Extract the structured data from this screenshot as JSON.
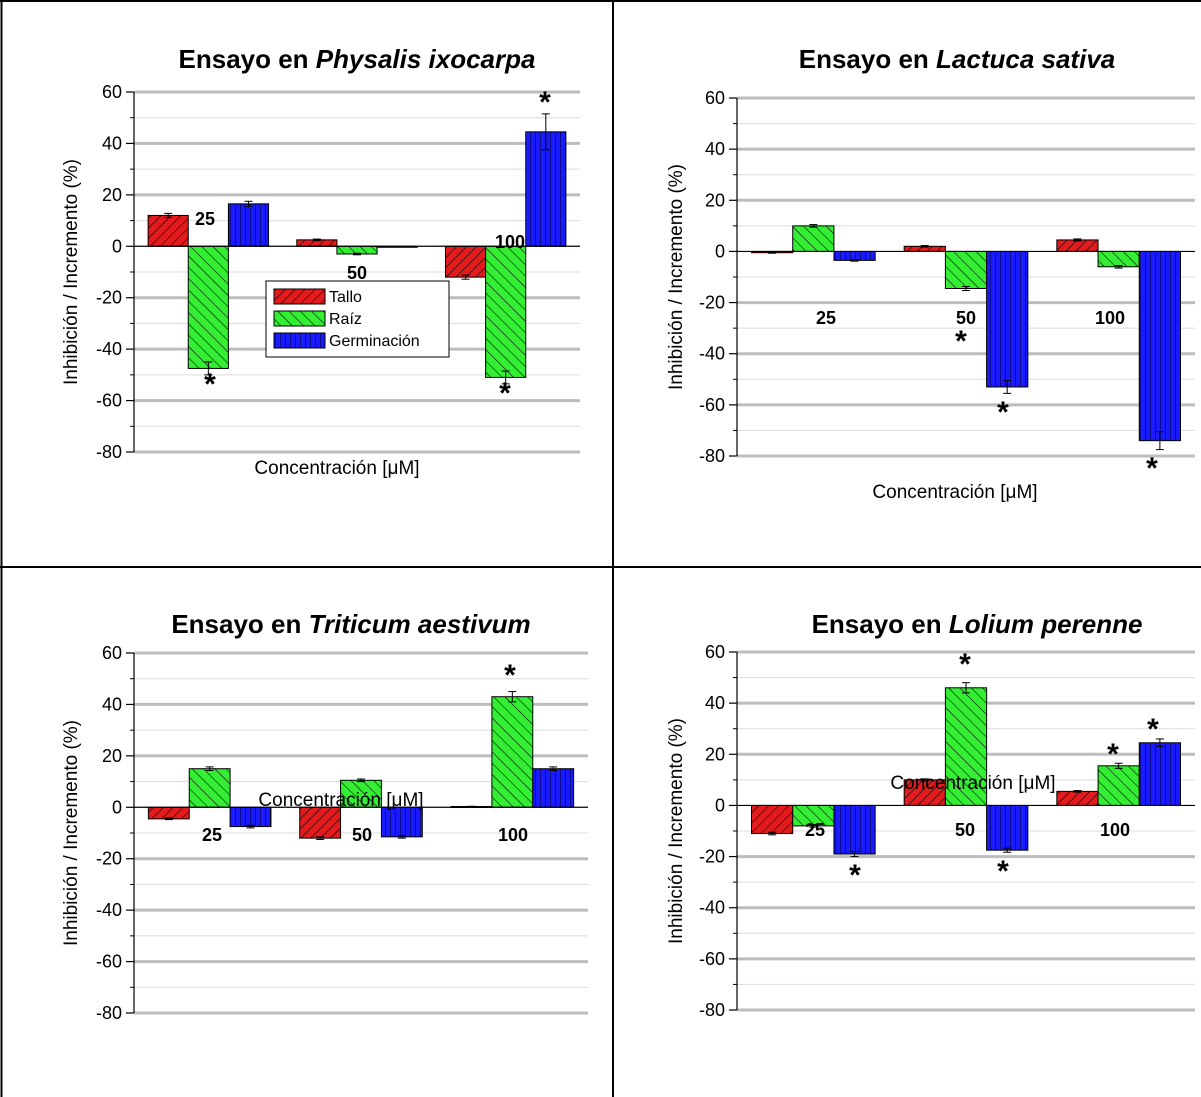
{
  "colors": {
    "tallo": "#e41a1c",
    "raiz": "#33ee33",
    "germinacion": "#1a1aff",
    "grid_major": "#bdbdbd",
    "grid_minor": "#dcdcdc"
  },
  "legend": {
    "tallo": "Tallo",
    "raiz": "Raíz",
    "germinacion": "Germinación"
  },
  "chart_data": [
    {
      "type": "bar",
      "title_prefix": "Ensayo en ",
      "title_species": "Physalis ixocarpa",
      "ylabel": "Inhibición / Incremento (%)",
      "xlabel": "Concentración [μM]",
      "ylim": [
        -80,
        60
      ],
      "yticks": [
        -80,
        -60,
        -40,
        -20,
        0,
        20,
        40,
        60
      ],
      "grid": true,
      "legend_position": "center",
      "categories": [
        "25",
        "50",
        "100"
      ],
      "series": [
        {
          "name": "Tallo",
          "values": [
            12,
            2.5,
            -12
          ],
          "errors": [
            0.8,
            0.3,
            0.8
          ],
          "significant": [
            false,
            false,
            false
          ]
        },
        {
          "name": "Raíz",
          "values": [
            -47.5,
            -3,
            -51
          ],
          "errors": [
            2.5,
            0.3,
            2.5
          ],
          "significant": [
            true,
            false,
            true
          ]
        },
        {
          "name": "Germinación",
          "values": [
            16.5,
            0,
            44.5
          ],
          "errors": [
            1,
            0,
            7
          ],
          "significant": [
            false,
            false,
            true
          ]
        }
      ]
    },
    {
      "type": "bar",
      "title_prefix": "Ensayo en ",
      "title_species": "Lactuca sativa",
      "ylabel": "Inhibición / Incremento (%)",
      "xlabel": "Concentración [μM]",
      "ylim": [
        -80,
        60
      ],
      "yticks": [
        -80,
        -60,
        -40,
        -20,
        0,
        20,
        40,
        60
      ],
      "grid": true,
      "categories": [
        "25",
        "50",
        "100"
      ],
      "series": [
        {
          "name": "Tallo",
          "values": [
            -0.5,
            2,
            4.5
          ],
          "errors": [
            0.2,
            0.3,
            0.4
          ],
          "significant": [
            false,
            false,
            false
          ]
        },
        {
          "name": "Raíz",
          "values": [
            10,
            -14.5,
            -6
          ],
          "errors": [
            0.5,
            0.8,
            0.5
          ],
          "significant": [
            false,
            true,
            false
          ]
        },
        {
          "name": "Germinación",
          "values": [
            -3.5,
            -53,
            -74
          ],
          "errors": [
            0.3,
            2.5,
            3.5
          ],
          "significant": [
            false,
            true,
            true
          ]
        }
      ]
    },
    {
      "type": "bar",
      "title_prefix": "Ensayo en ",
      "title_species": "Triticum aestivum",
      "ylabel": "Inhibición / Incremento (%)",
      "xlabel": "Concentración [μM]",
      "ylim": [
        -80,
        60
      ],
      "yticks": [
        -80,
        -60,
        -40,
        -20,
        0,
        20,
        40,
        60
      ],
      "grid": true,
      "categories": [
        "25",
        "50",
        "100"
      ],
      "series": [
        {
          "name": "Tallo",
          "values": [
            -4.5,
            -12,
            0.3
          ],
          "errors": [
            0.3,
            0.5,
            0.1
          ],
          "significant": [
            false,
            false,
            false
          ]
        },
        {
          "name": "Raíz",
          "values": [
            15,
            10.5,
            43
          ],
          "errors": [
            0.7,
            0.5,
            2
          ],
          "significant": [
            false,
            false,
            true
          ]
        },
        {
          "name": "Germinación",
          "values": [
            -7.5,
            -11.5,
            15
          ],
          "errors": [
            0.5,
            0.5,
            0.7
          ],
          "significant": [
            false,
            false,
            false
          ]
        }
      ]
    },
    {
      "type": "bar",
      "title_prefix": "Ensayo en ",
      "title_species": "Lolium perenne",
      "ylabel": "Inhibición / Incremento (%)",
      "xlabel": "Concentración [μM]",
      "ylim": [
        -80,
        60
      ],
      "yticks": [
        -80,
        -60,
        -40,
        -20,
        0,
        20,
        40,
        60
      ],
      "grid": true,
      "categories": [
        "25",
        "50",
        "100"
      ],
      "series": [
        {
          "name": "Tallo",
          "values": [
            -11,
            10,
            5.5
          ],
          "errors": [
            0.5,
            0.4,
            0.3
          ],
          "significant": [
            false,
            false,
            false
          ]
        },
        {
          "name": "Raíz",
          "values": [
            -8,
            46,
            15.5
          ],
          "errors": [
            0.5,
            2,
            1
          ],
          "significant": [
            false,
            true,
            true
          ]
        },
        {
          "name": "Germinación",
          "values": [
            -19,
            -17.5,
            24.5
          ],
          "errors": [
            1,
            0.8,
            1.5
          ],
          "significant": [
            true,
            true,
            true
          ]
        }
      ]
    }
  ]
}
